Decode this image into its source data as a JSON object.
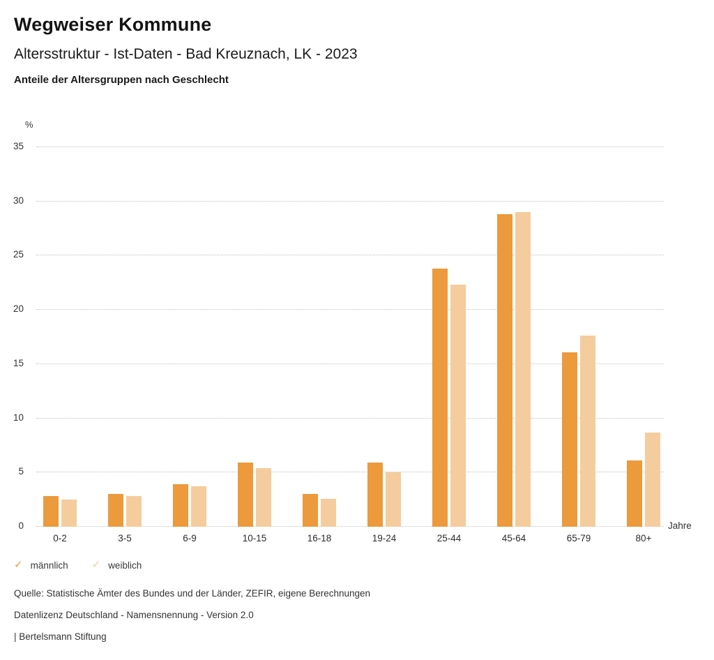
{
  "header": {
    "title": "Wegweiser Kommune",
    "subtitle": "Altersstruktur - Ist-Daten - Bad Kreuznach, LK - 2023",
    "caption": "Anteile der Altersgruppen nach Geschlecht"
  },
  "icons": {
    "check": "✓"
  },
  "chart_data": {
    "type": "bar",
    "subtype": "grouped-vertical-columns",
    "title": "Anteile der Altersgruppen nach Geschlecht",
    "categories": [
      "0-2",
      "3-5",
      "6-9",
      "10-15",
      "16-18",
      "19-24",
      "25-44",
      "45-64",
      "65-79",
      "80+"
    ],
    "series": [
      {
        "name": "männlich",
        "color": "#EC9A3C",
        "values": [
          2.8,
          3.0,
          3.9,
          5.9,
          3.0,
          5.9,
          23.8,
          28.8,
          16.1,
          6.1
        ]
      },
      {
        "name": "weiblich",
        "color": "#F5CC9D",
        "values": [
          2.5,
          2.8,
          3.7,
          5.4,
          2.6,
          5.0,
          22.3,
          29.0,
          17.6,
          8.7
        ]
      }
    ],
    "xlabel": "Jahre",
    "ylabel": "%",
    "ylim": [
      0,
      35
    ],
    "ytick_step": 5,
    "yticks": [
      0,
      5,
      10,
      15,
      20,
      25,
      30,
      35
    ],
    "grid": "horizontal-dotted",
    "legend_position": "bottom-left"
  },
  "footer": {
    "source": "Quelle: Statistische Ämter des Bundes und der Länder, ZEFIR, eigene Berechnungen",
    "license": "Datenlizenz Deutschland - Namensnennung - Version 2.0",
    "attribution": "| Bertelsmann Stiftung"
  }
}
